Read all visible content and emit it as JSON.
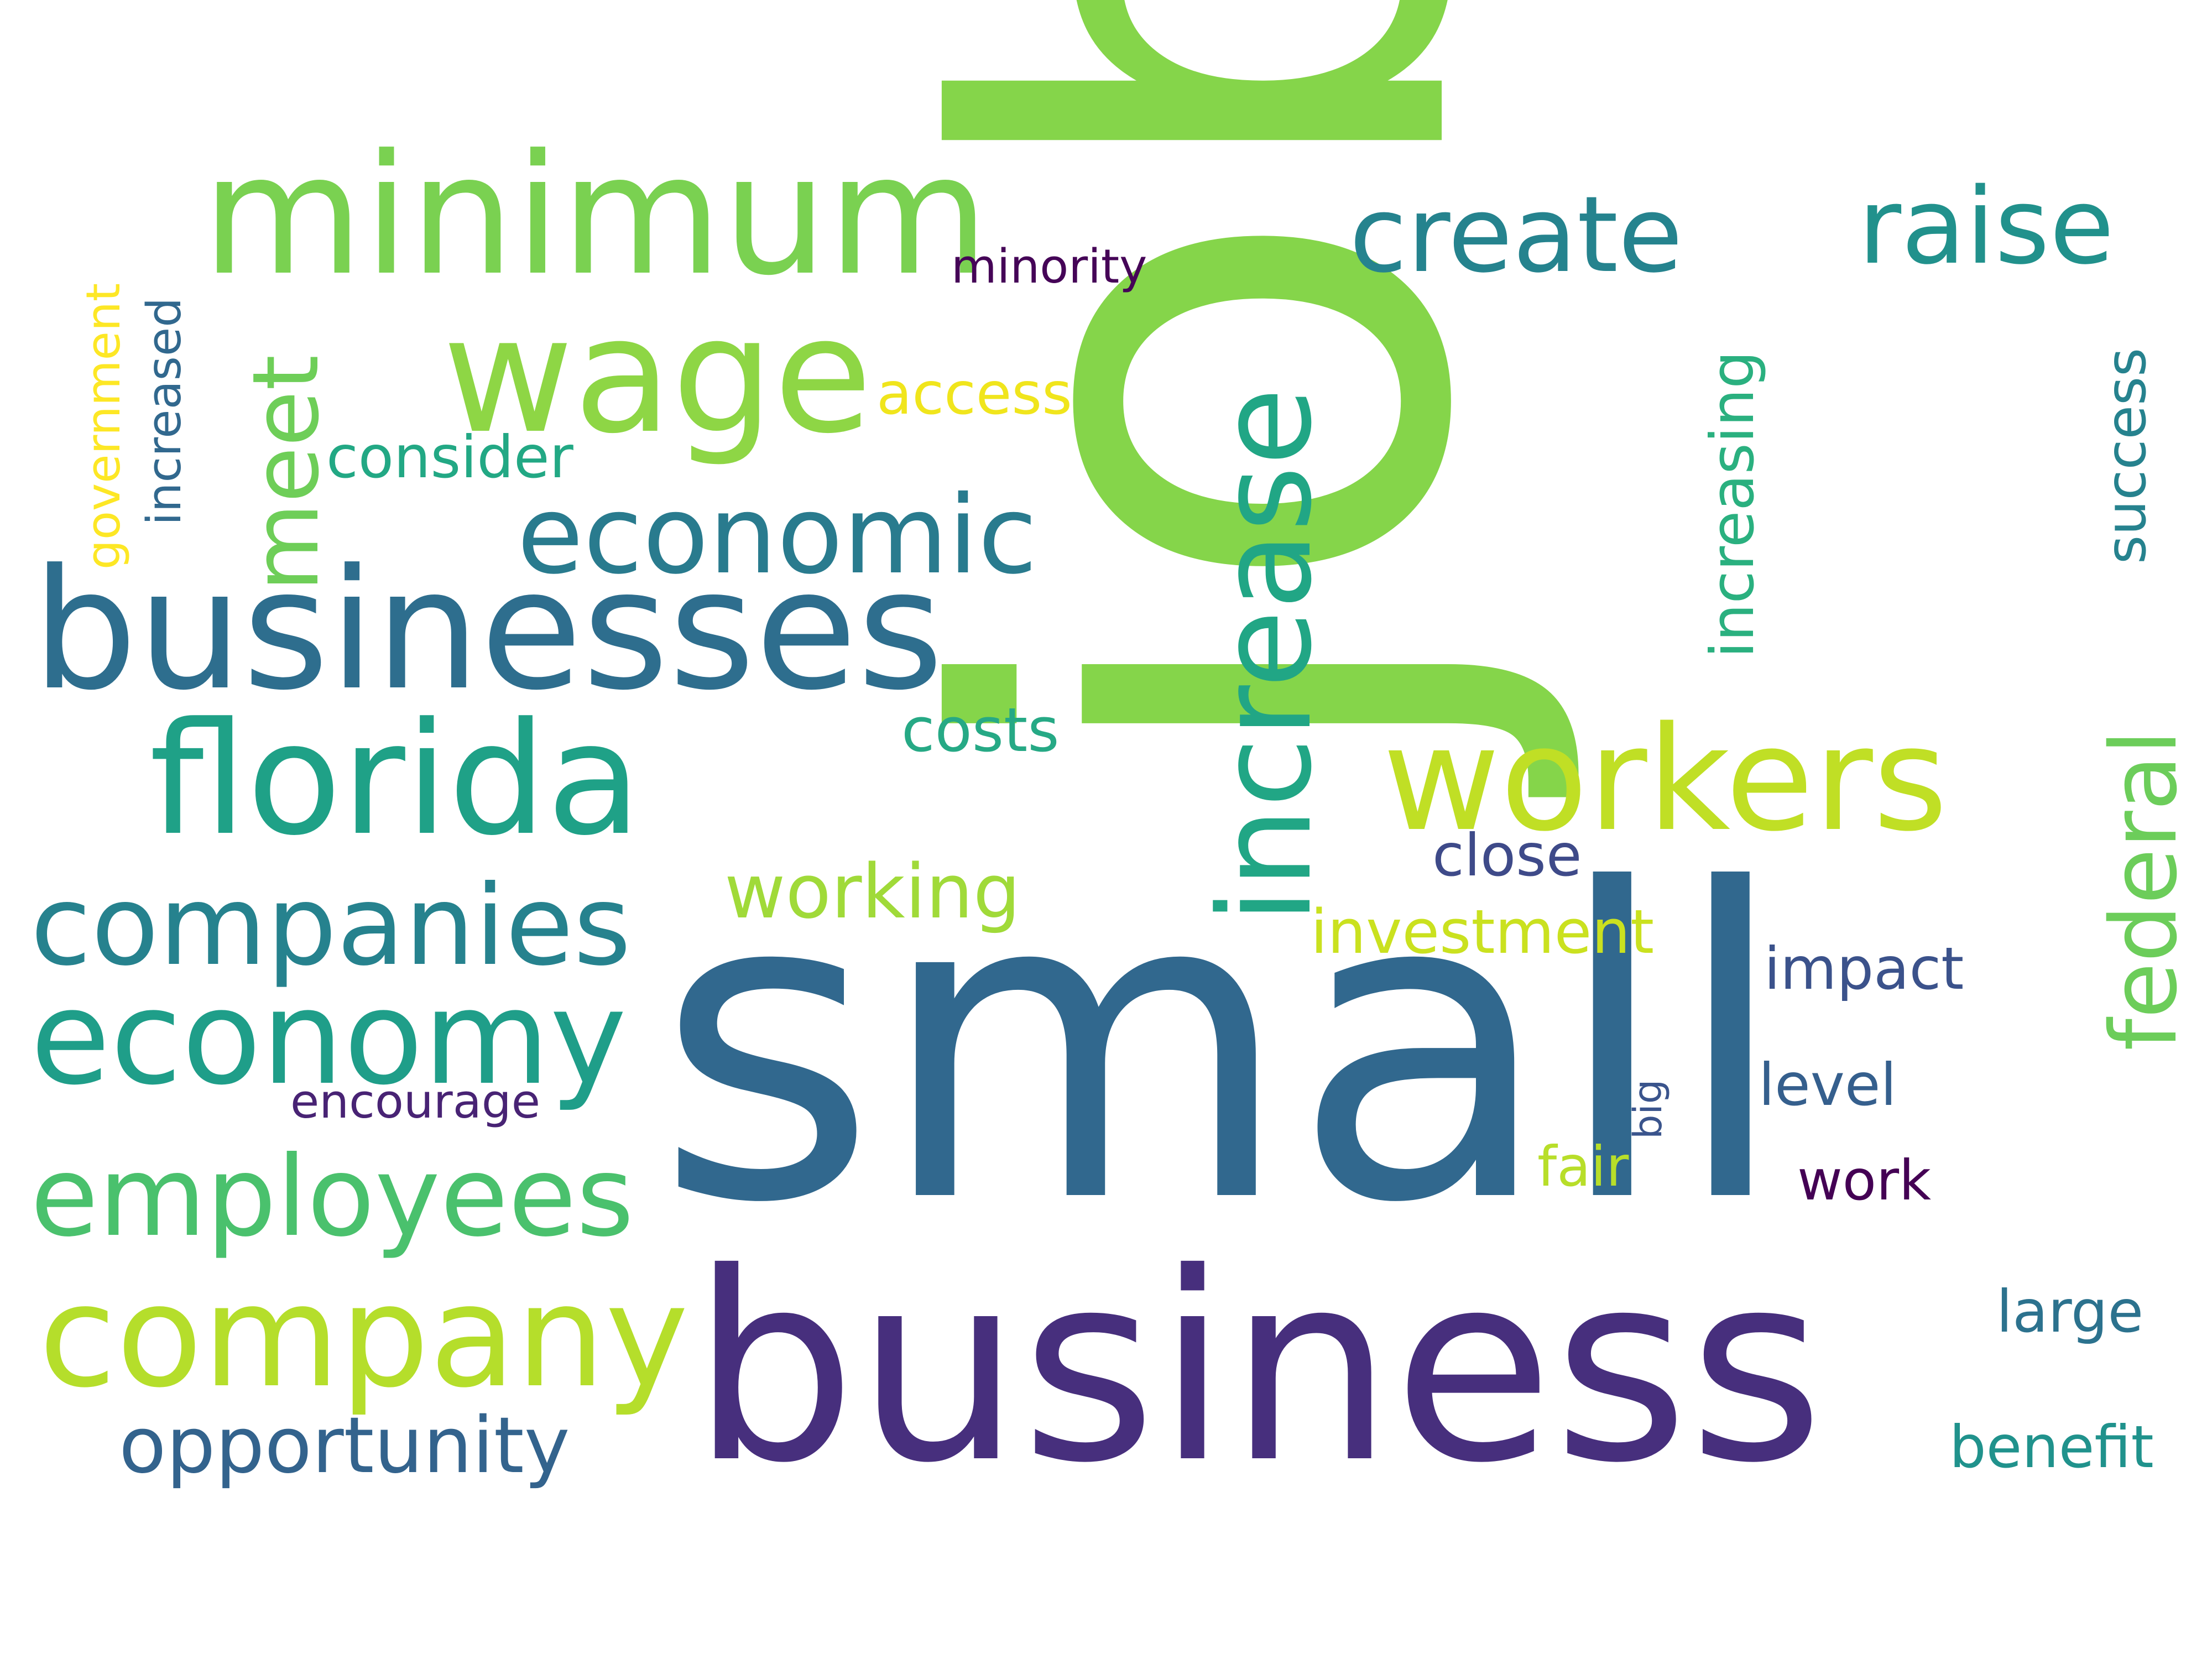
{
  "words": [
    {
      "id": "job",
      "text": "job",
      "color": "#85d54a"
    },
    {
      "id": "small",
      "text": "small",
      "color": "#31688e"
    },
    {
      "id": "business",
      "text": "business",
      "color": "#472f7d"
    },
    {
      "id": "businesses",
      "text": "businesses",
      "color": "#2e6e8e"
    },
    {
      "id": "minimum",
      "text": "minimum",
      "color": "#7ad151"
    },
    {
      "id": "increase",
      "text": "increase",
      "color": "#21a685"
    },
    {
      "id": "wage",
      "text": "wage",
      "color": "#8ed645"
    },
    {
      "id": "florida",
      "text": "florida",
      "color": "#1fa187"
    },
    {
      "id": "workers",
      "text": "workers",
      "color": "#c0df25"
    },
    {
      "id": "company",
      "text": "company",
      "color": "#b5de2b"
    },
    {
      "id": "economy",
      "text": "economy",
      "color": "#1f9e89"
    },
    {
      "id": "companies",
      "text": "companies",
      "color": "#26828e"
    },
    {
      "id": "employees",
      "text": "employees",
      "color": "#4ac16d"
    },
    {
      "id": "economic",
      "text": "economic",
      "color": "#297b8e"
    },
    {
      "id": "create",
      "text": "create",
      "color": "#25838e"
    },
    {
      "id": "raise",
      "text": "raise",
      "color": "#21918c"
    },
    {
      "id": "federal",
      "text": "federal",
      "color": "#6ccd5a"
    },
    {
      "id": "meet",
      "text": "meet",
      "color": "#6ece58"
    },
    {
      "id": "opportunity",
      "text": "opportunity",
      "color": "#33638d"
    },
    {
      "id": "working",
      "text": "working",
      "color": "#a0da39"
    },
    {
      "id": "investment",
      "text": "investment",
      "color": "#cae11f"
    },
    {
      "id": "increasing",
      "text": "increasing",
      "color": "#2ab07f"
    },
    {
      "id": "costs",
      "text": "costs",
      "color": "#26a985"
    },
    {
      "id": "access",
      "text": "access",
      "color": "#f0e51c"
    },
    {
      "id": "consider",
      "text": "consider",
      "color": "#22a884"
    },
    {
      "id": "success",
      "text": "success",
      "color": "#26828e"
    },
    {
      "id": "close",
      "text": "close",
      "color": "#3e4a89"
    },
    {
      "id": "impact",
      "text": "impact",
      "color": "#3b528b"
    },
    {
      "id": "level",
      "text": "level",
      "color": "#355f8d"
    },
    {
      "id": "large",
      "text": "large",
      "color": "#2c728e"
    },
    {
      "id": "benefit",
      "text": "benefit",
      "color": "#20928c"
    },
    {
      "id": "work",
      "text": "work",
      "color": "#440154"
    },
    {
      "id": "fair",
      "text": "fair",
      "color": "#b8de29"
    },
    {
      "id": "encourage",
      "text": "encourage",
      "color": "#482374"
    },
    {
      "id": "minority",
      "text": "minority",
      "color": "#450457"
    },
    {
      "id": "government",
      "text": "government",
      "color": "#fde725"
    },
    {
      "id": "increased",
      "text": "increased",
      "color": "#31688e"
    },
    {
      "id": "big",
      "text": "big",
      "color": "#3a548c"
    }
  ]
}
